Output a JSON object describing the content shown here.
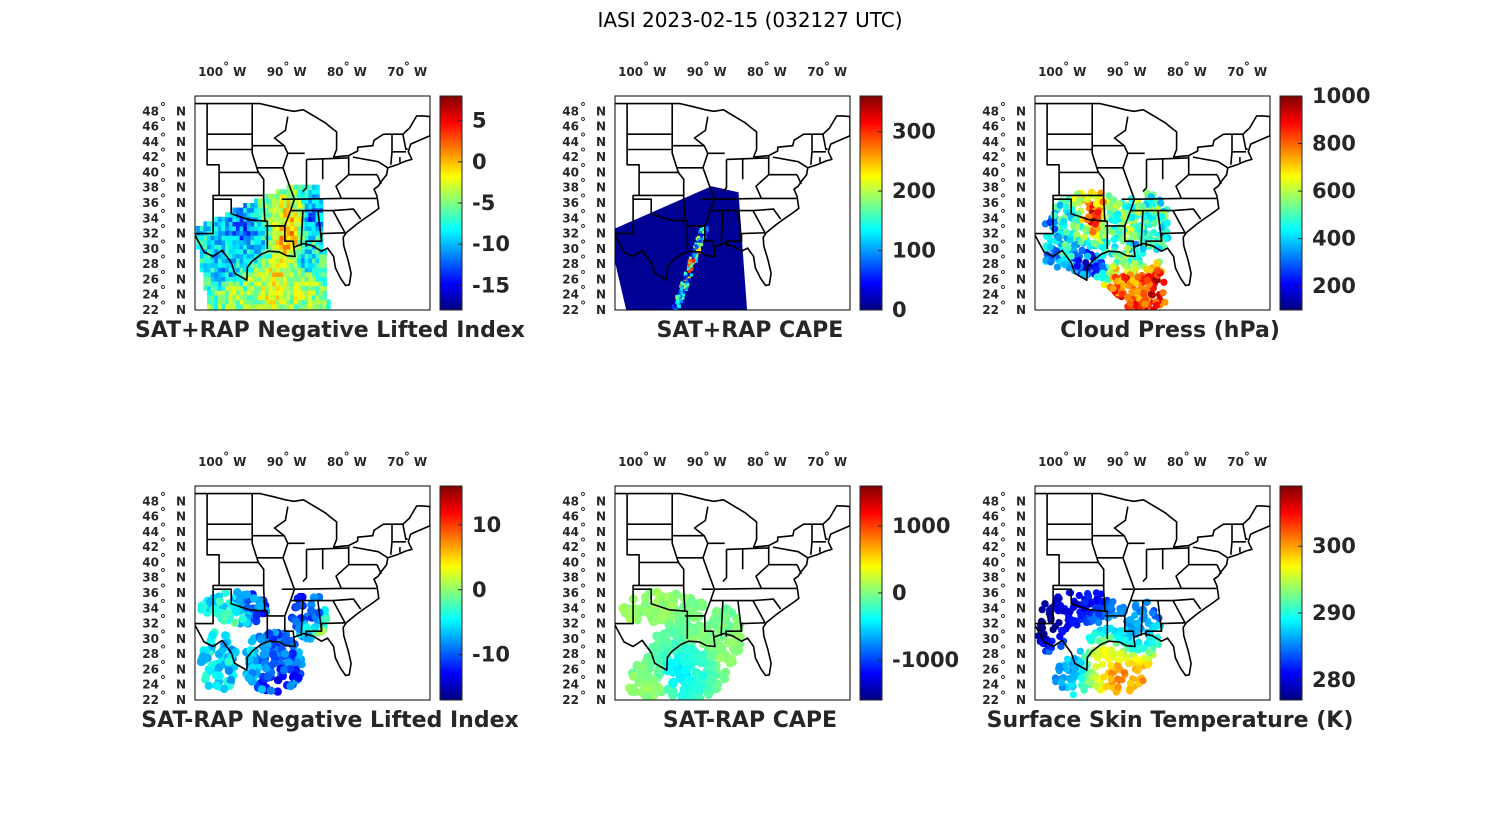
{
  "title": "IASI 2023-02-15 (032127 UTC)",
  "lon_ticks": [
    {
      "deg": "100",
      "hemi": "W"
    },
    {
      "deg": "90",
      "hemi": "W"
    },
    {
      "deg": "80",
      "hemi": "W"
    },
    {
      "deg": "70",
      "hemi": "W"
    }
  ],
  "lat_ticks": [
    {
      "deg": "48",
      "hemi": "N"
    },
    {
      "deg": "46",
      "hemi": "N"
    },
    {
      "deg": "44",
      "hemi": "N"
    },
    {
      "deg": "42",
      "hemi": "N"
    },
    {
      "deg": "40",
      "hemi": "N"
    },
    {
      "deg": "38",
      "hemi": "N"
    },
    {
      "deg": "36",
      "hemi": "N"
    },
    {
      "deg": "34",
      "hemi": "N"
    },
    {
      "deg": "32",
      "hemi": "N"
    },
    {
      "deg": "30",
      "hemi": "N"
    },
    {
      "deg": "28",
      "hemi": "N"
    },
    {
      "deg": "26",
      "hemi": "N"
    },
    {
      "deg": "24",
      "hemi": "N"
    },
    {
      "deg": "22",
      "hemi": "N"
    }
  ],
  "colormap": "jet",
  "panels": [
    {
      "id": "sat-rap-neg-li",
      "title": "SAT+RAP Negative Lifted Index",
      "cbar_range": [
        -18,
        8
      ],
      "cbar_ticks": [
        "5",
        "0",
        "-5",
        "-10",
        "-15"
      ],
      "cbar_tick_values": [
        5,
        0,
        -5,
        -10,
        -15
      ],
      "kind": "swath",
      "profile": "li"
    },
    {
      "id": "sat-rap-cape",
      "title": "SAT+RAP CAPE",
      "cbar_range": [
        0,
        360
      ],
      "cbar_ticks": [
        "300",
        "200",
        "100",
        "0"
      ],
      "cbar_tick_values": [
        300,
        200,
        100,
        0
      ],
      "kind": "swath",
      "profile": "cape"
    },
    {
      "id": "cloud-press",
      "title": "Cloud Press (hPa)",
      "cbar_range": [
        100,
        1000
      ],
      "cbar_ticks": [
        "1000",
        "800",
        "600",
        "400",
        "200"
      ],
      "cbar_tick_values": [
        1000,
        800,
        600,
        400,
        200
      ],
      "kind": "dots",
      "profile": "cloud"
    },
    {
      "id": "sat-minus-rap-neg-li",
      "title": "SAT-RAP Negative Lifted Index",
      "cbar_range": [
        -17,
        16
      ],
      "cbar_ticks": [
        "10",
        "0",
        "-10"
      ],
      "cbar_tick_values": [
        10,
        0,
        -10
      ],
      "kind": "dots",
      "profile": "dli"
    },
    {
      "id": "sat-minus-rap-cape",
      "title": "SAT-RAP CAPE",
      "cbar_range": [
        -1600,
        1600
      ],
      "cbar_ticks": [
        "1000",
        "0",
        "-1000"
      ],
      "cbar_tick_values": [
        1000,
        0,
        -1000
      ],
      "kind": "dots",
      "profile": "dcape"
    },
    {
      "id": "skin-temp",
      "title": "Surface Skin Temperature (K)",
      "cbar_range": [
        277,
        309
      ],
      "cbar_ticks": [
        "300",
        "290",
        "280"
      ],
      "cbar_tick_values": [
        300,
        290,
        280
      ],
      "kind": "dots",
      "profile": "skin"
    }
  ]
}
